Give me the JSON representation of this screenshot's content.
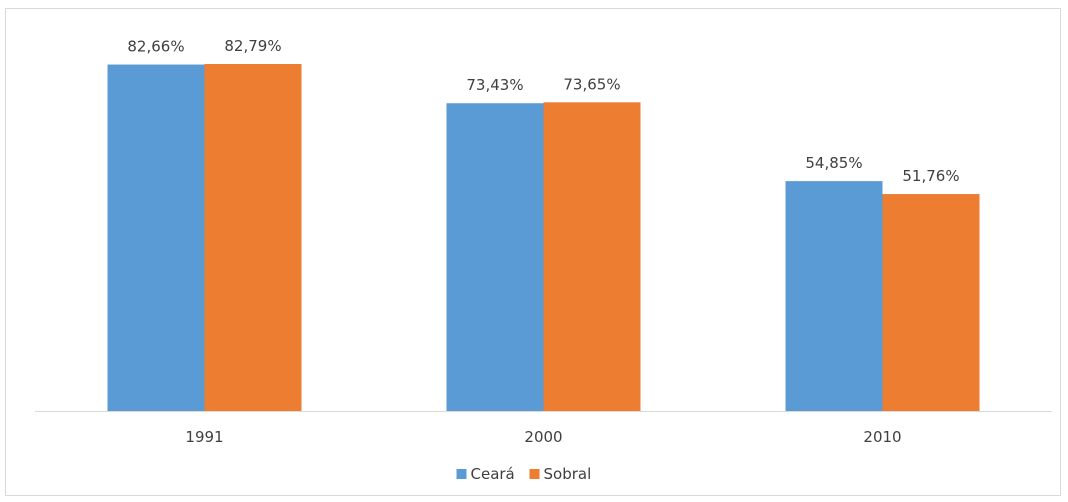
{
  "chart_data": {
    "type": "bar",
    "categories": [
      "1991",
      "2000",
      "2010"
    ],
    "series": [
      {
        "name": "Ceará",
        "values": [
          82.66,
          73.43,
          54.85
        ],
        "labels": [
          "82,66%",
          "73,43%",
          "54,85%"
        ],
        "color": "#5b9bd5"
      },
      {
        "name": "Sobral",
        "values": [
          82.79,
          73.65,
          51.76
        ],
        "labels": [
          "82,79%",
          "73,65%",
          "51,76%"
        ],
        "color": "#ed7d31"
      }
    ],
    "ylim": [
      0,
      82.79
    ],
    "grid": false,
    "legend_position": "bottom",
    "axis_color": "#d9d9d9",
    "text_color": "#404040"
  }
}
